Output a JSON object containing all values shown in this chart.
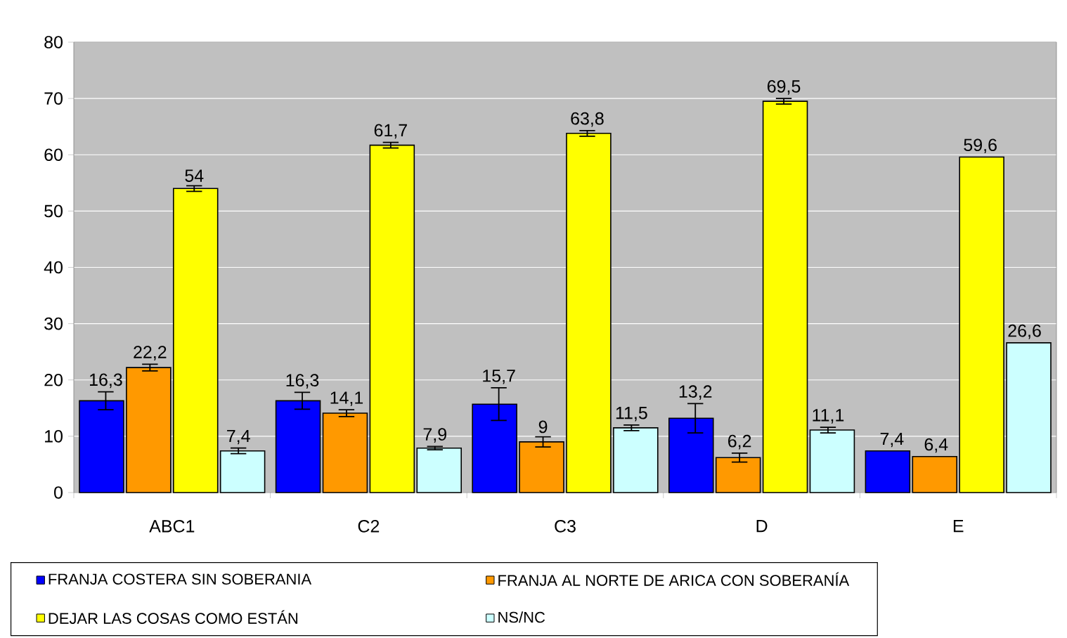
{
  "chart_data": {
    "type": "bar",
    "categories": [
      "ABC1",
      "C2",
      "C3",
      "D",
      "E"
    ],
    "series": [
      {
        "name": "FRANJA COSTERA SIN SOBERANIA",
        "color": "#0000ff",
        "values": [
          16.3,
          16.3,
          15.7,
          13.2,
          7.4
        ],
        "errors": [
          1.6,
          1.5,
          2.9,
          2.6,
          null
        ],
        "value_labels": [
          "16,3",
          "16,3",
          "15,7",
          "13,2",
          "7,4"
        ]
      },
      {
        "name": "FRANJA AL NORTE DE ARICA CON SOBERANÍA",
        "color": "#ff9900",
        "values": [
          22.2,
          14.1,
          9,
          6.2,
          6.4
        ],
        "errors": [
          0.6,
          0.6,
          0.9,
          0.8,
          null
        ],
        "value_labels": [
          "22,2",
          "14,1",
          "9",
          "6,2",
          "6,4"
        ]
      },
      {
        "name": "DEJAR LAS COSAS COMO ESTÁN",
        "color": "#ffff00",
        "values": [
          54,
          61.7,
          63.8,
          69.5,
          59.6
        ],
        "errors": [
          0.5,
          0.5,
          0.5,
          0.5,
          null
        ],
        "value_labels": [
          "54",
          "61,7",
          "63,8",
          "69,5",
          "59,6"
        ]
      },
      {
        "name": "NS/NC",
        "color": "#ccffff",
        "values": [
          7.4,
          7.9,
          11.5,
          11.1,
          26.6
        ],
        "errors": [
          0.5,
          0.3,
          0.5,
          0.5,
          null
        ],
        "value_labels": [
          "7,4",
          "7,9",
          "11,5",
          "11,1",
          "26,6"
        ]
      }
    ],
    "ylim": [
      0,
      80
    ],
    "yticks": [
      0,
      10,
      20,
      30,
      40,
      50,
      60,
      70,
      80
    ],
    "grid": "y",
    "legend": "bottom",
    "data_labels": true
  }
}
